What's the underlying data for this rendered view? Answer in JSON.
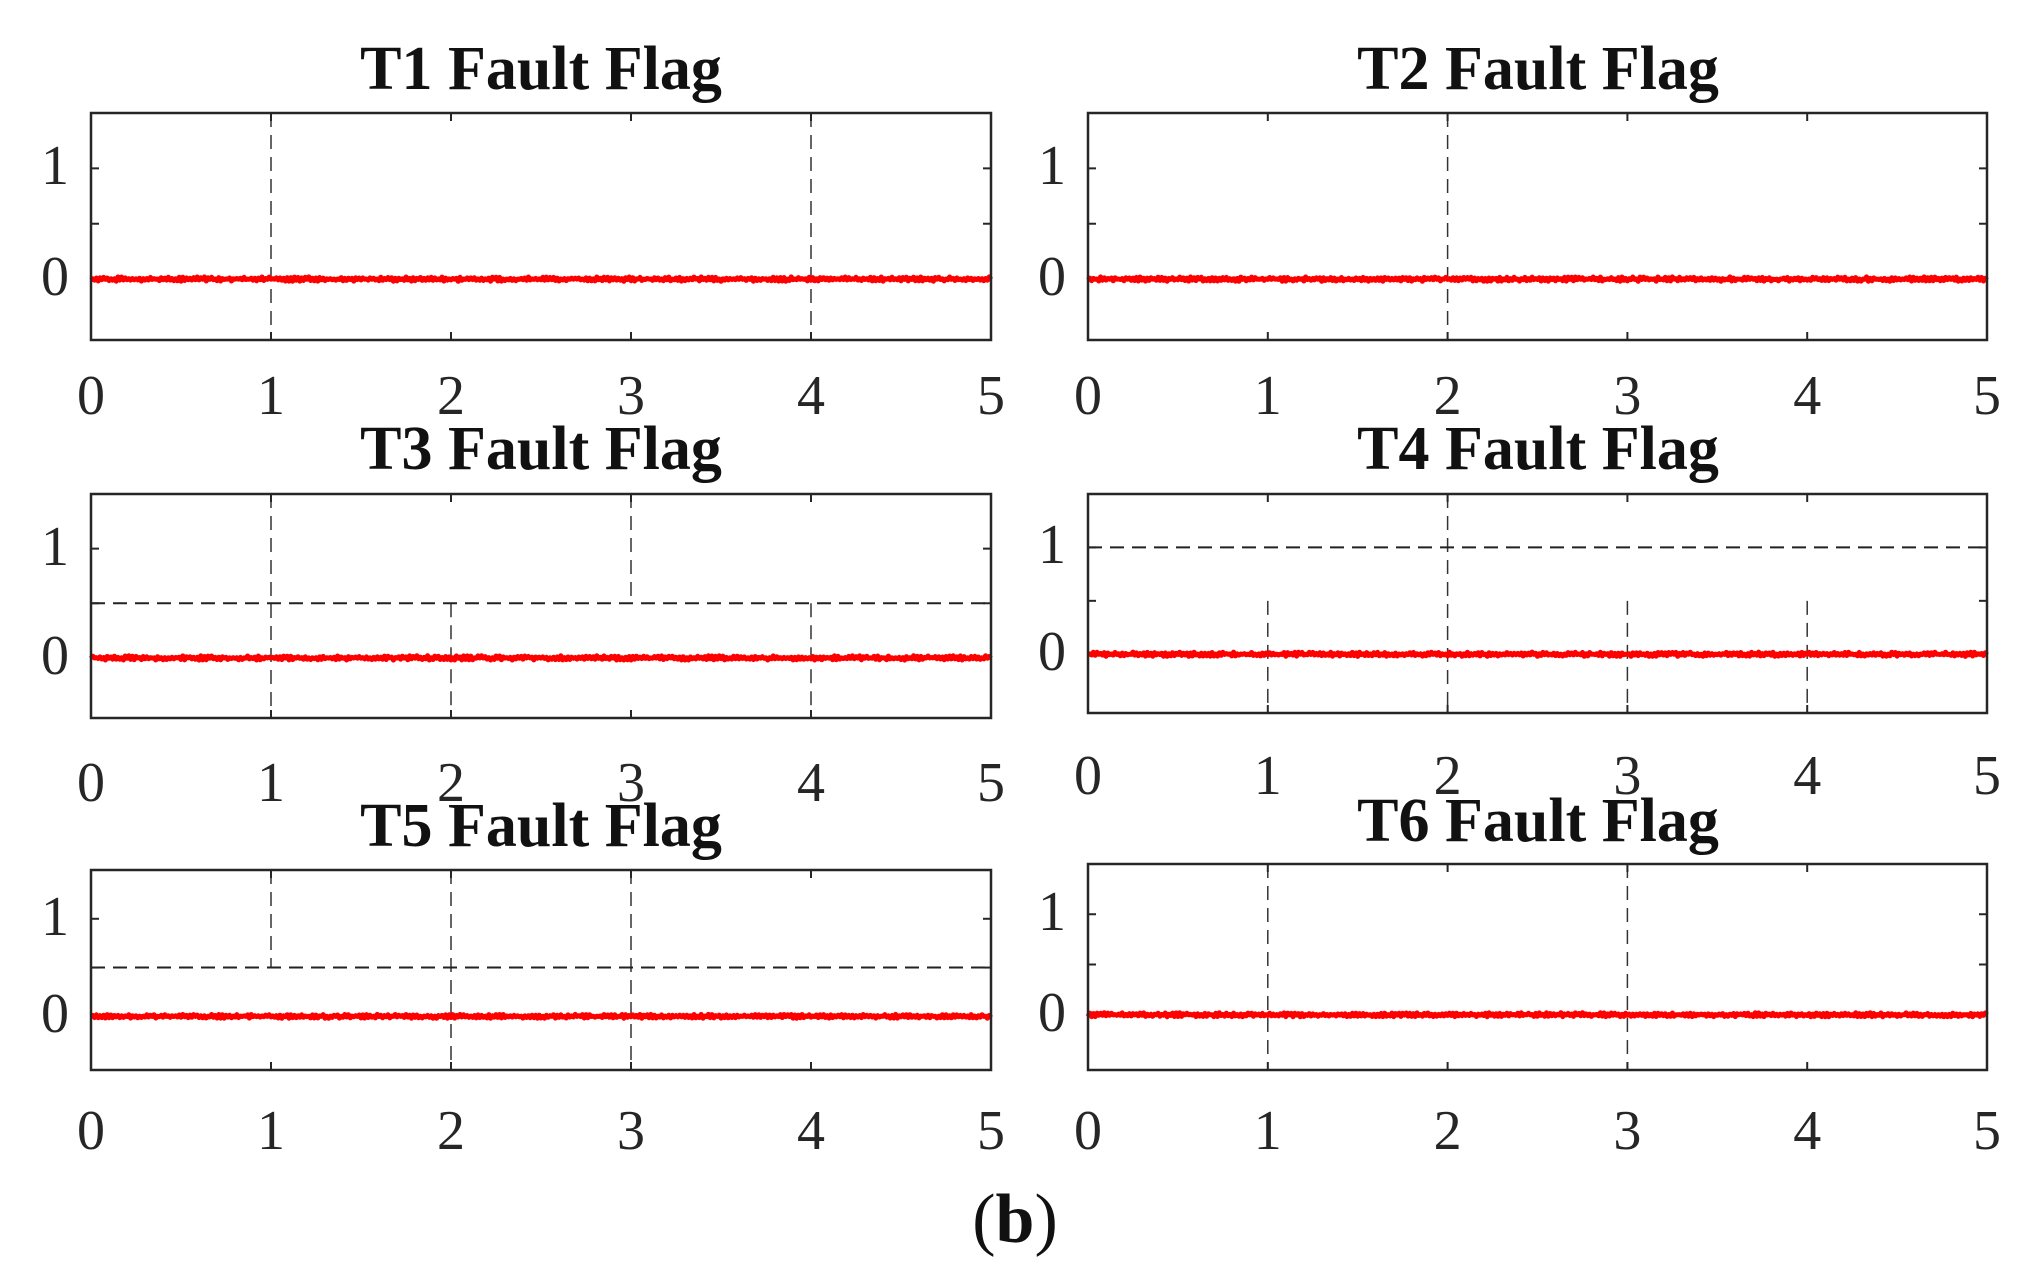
{
  "figure": {
    "caption_open": "(",
    "caption_letter": "b",
    "caption_close": ")",
    "line_color": "#ff0000",
    "axis_color": "#262626"
  },
  "chart_data": [
    {
      "type": "line",
      "title": "T1 Fault Flag",
      "x_ticks": [
        "0",
        "1",
        "2",
        "3",
        "4",
        "5"
      ],
      "y_ticks": [
        "0",
        "1"
      ],
      "xlim": [
        0,
        5
      ],
      "ylim": [
        -0.55,
        1.5
      ],
      "threshold": null,
      "series": [
        {
          "name": "T1 fault flag",
          "color": "#ff0000",
          "x": [
            0,
            1,
            2,
            3,
            3.5,
            4,
            4.5,
            5
          ],
          "y": [
            0,
            0,
            0,
            0,
            0,
            0,
            0,
            0
          ]
        }
      ],
      "grid_x": "dashed at 1 and 4 (partial)"
    },
    {
      "type": "line",
      "title": "T2 Fault Flag",
      "x_ticks": [
        "0",
        "1",
        "2",
        "3",
        "4",
        "5"
      ],
      "y_ticks": [
        "0",
        "1"
      ],
      "xlim": [
        0,
        5
      ],
      "ylim": [
        -0.55,
        1.5
      ],
      "threshold": null,
      "series": [
        {
          "name": "T2 fault flag",
          "color": "#ff0000",
          "x": [
            0,
            1,
            2,
            3,
            3.5,
            4,
            4.5,
            5
          ],
          "y": [
            0,
            0,
            0,
            0,
            0,
            0,
            0,
            0
          ]
        }
      ]
    },
    {
      "type": "line",
      "title": "T3 Fault Flag",
      "x_ticks": [
        "0",
        "1",
        "2",
        "3",
        "4",
        "5"
      ],
      "y_ticks": [
        "0",
        "1"
      ],
      "xlim": [
        0,
        5
      ],
      "ylim": [
        -0.55,
        1.5
      ],
      "threshold": 0.5,
      "series": [
        {
          "name": "T3 fault flag",
          "color": "#ff0000",
          "x": [
            0,
            1,
            2,
            3,
            3.3,
            3.5,
            3.8,
            4,
            4.3,
            4.6,
            4.8,
            5
          ],
          "y": [
            0,
            0,
            0,
            0,
            0.05,
            0.06,
            0.08,
            0.08,
            0.09,
            0.09,
            0.1,
            0.05
          ]
        }
      ]
    },
    {
      "type": "line",
      "title": "T4 Fault Flag",
      "x_ticks": [
        "0",
        "1",
        "2",
        "3",
        "4",
        "5"
      ],
      "y_ticks": [
        "0",
        "1"
      ],
      "xlim": [
        0,
        5
      ],
      "ylim": [
        -0.55,
        1.5
      ],
      "threshold": 1.0,
      "series": [
        {
          "name": "T4 fault flag",
          "color": "#ff0000",
          "x": [
            0,
            1,
            2,
            3,
            3.3,
            3.6,
            4,
            4.3,
            4.6,
            5
          ],
          "y": [
            0,
            0,
            0,
            0,
            0.03,
            0.05,
            0.06,
            0.08,
            0.08,
            0.07
          ]
        }
      ]
    },
    {
      "type": "line",
      "title": "T5 Fault Flag",
      "x_ticks": [
        "0",
        "1",
        "2",
        "3",
        "4",
        "5"
      ],
      "y_ticks": [
        "0",
        "1"
      ],
      "xlim": [
        0,
        5
      ],
      "ylim": [
        -0.55,
        1.5
      ],
      "threshold": 0.5,
      "series": [
        {
          "name": "T5 fault flag",
          "color": "#ff0000",
          "x": [
            0,
            1,
            2,
            3,
            4,
            5
          ],
          "y": [
            0,
            0,
            0,
            0,
            0,
            0
          ]
        }
      ]
    },
    {
      "type": "line",
      "title": "T6 Fault Flag",
      "x_ticks": [
        "0",
        "1",
        "2",
        "3",
        "4",
        "5"
      ],
      "y_ticks": [
        "0",
        "1"
      ],
      "xlim": [
        0,
        5
      ],
      "ylim": [
        -0.55,
        1.5
      ],
      "threshold": null,
      "series": [
        {
          "name": "T6 fault flag",
          "color": "#ff0000",
          "x": [
            0,
            1,
            2,
            3,
            4,
            5
          ],
          "y": [
            0,
            0,
            0,
            0,
            0,
            0
          ]
        }
      ]
    }
  ]
}
